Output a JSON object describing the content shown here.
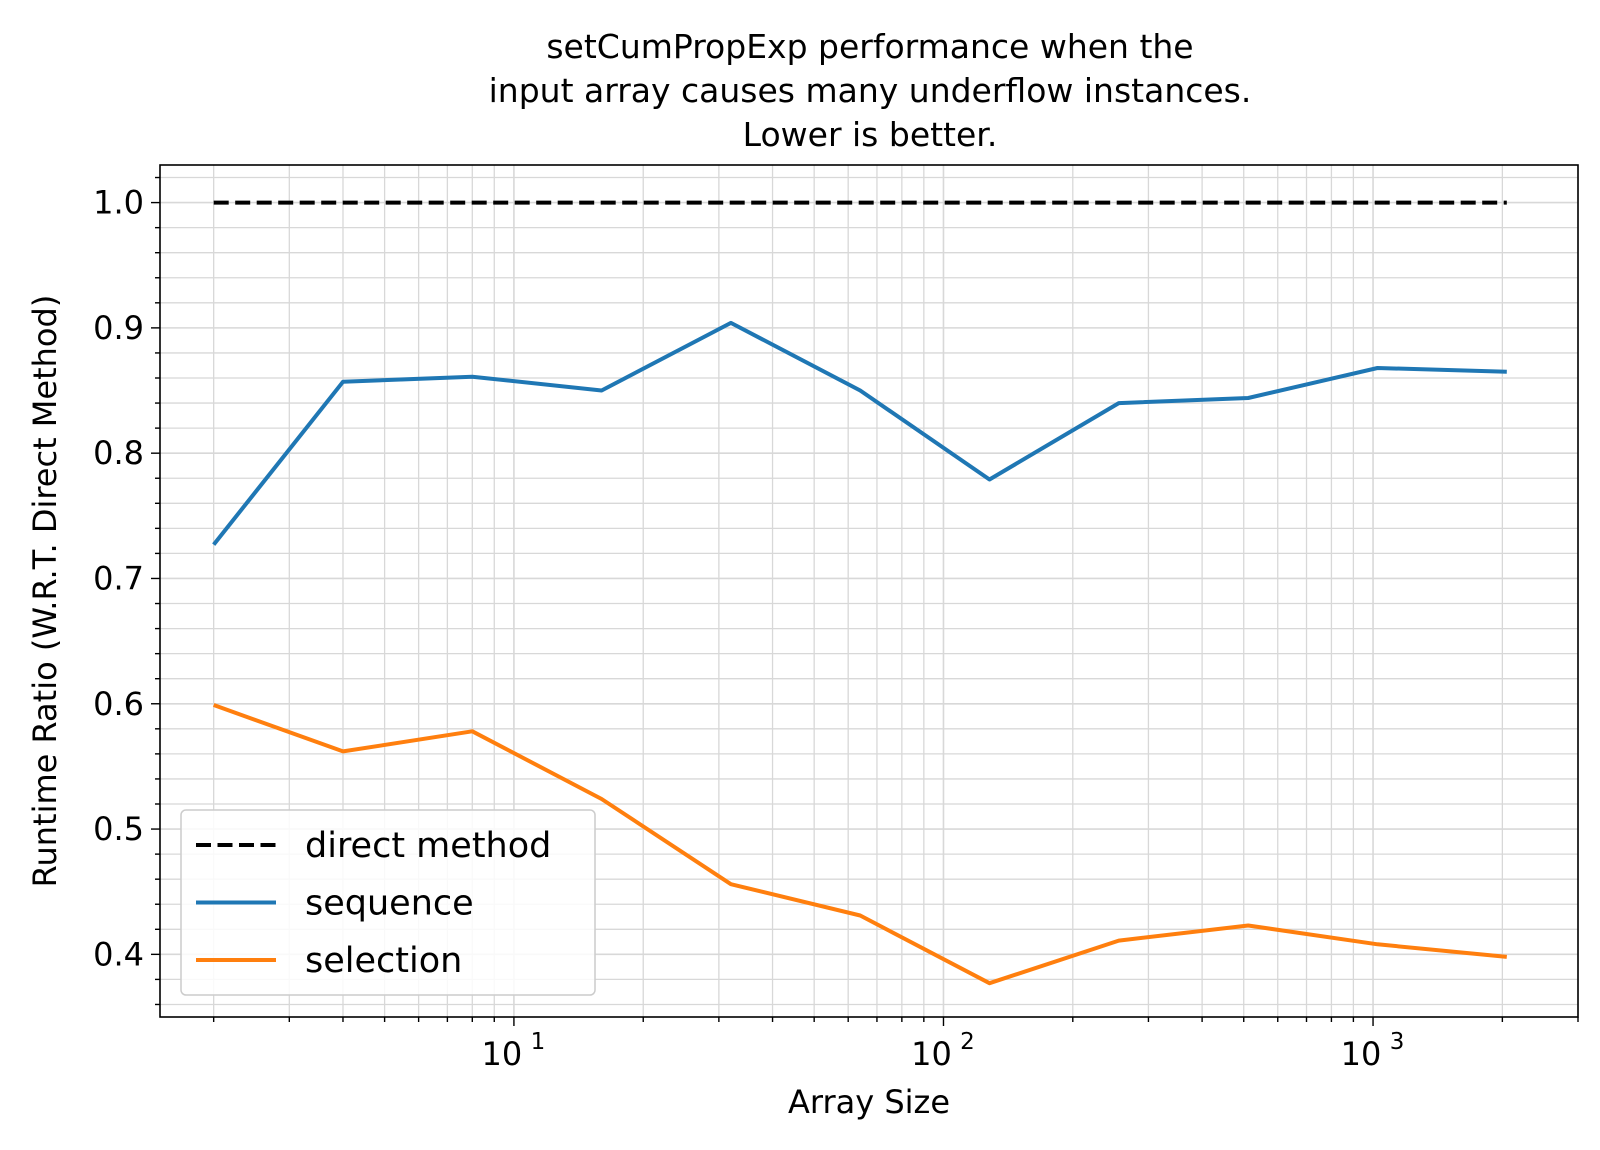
{
  "chart_data": {
    "type": "line",
    "title_lines": [
      "setCumPropExp performance when the",
      "input array causes many underflow instances.",
      "Lower is better."
    ],
    "xlabel": "Array Size",
    "ylabel": "Runtime Ratio (W.R.T. Direct Method)",
    "x_scale": "log",
    "xlim": [
      1.5,
      3000
    ],
    "ylim": [
      0.35,
      1.03
    ],
    "grid": true,
    "grid_minor": true,
    "legend_position": "lower-left",
    "x_ticks": [
      {
        "value": 10,
        "base": "10",
        "exp": "1"
      },
      {
        "value": 100,
        "base": "10",
        "exp": "2"
      },
      {
        "value": 1000,
        "base": "10",
        "exp": "3"
      }
    ],
    "y_ticks": [
      {
        "value": 0.4,
        "label": "0.4"
      },
      {
        "value": 0.5,
        "label": "0.5"
      },
      {
        "value": 0.6,
        "label": "0.6"
      },
      {
        "value": 0.7,
        "label": "0.7"
      },
      {
        "value": 0.8,
        "label": "0.8"
      },
      {
        "value": 0.9,
        "label": "0.9"
      },
      {
        "value": 1.0,
        "label": "1.0"
      }
    ],
    "x": [
      2,
      4,
      8,
      16,
      32,
      64,
      128,
      256,
      512,
      1024,
      2048
    ],
    "series": [
      {
        "name": "direct method",
        "color": "#000000",
        "dashed": true,
        "values": [
          1.0,
          1.0,
          1.0,
          1.0,
          1.0,
          1.0,
          1.0,
          1.0,
          1.0,
          1.0,
          1.0
        ]
      },
      {
        "name": "sequence",
        "color": "#1f77b4",
        "dashed": false,
        "values": [
          0.727,
          0.857,
          0.861,
          0.85,
          0.904,
          0.85,
          0.779,
          0.84,
          0.844,
          0.868,
          0.865
        ]
      },
      {
        "name": "selection",
        "color": "#ff7f0e",
        "dashed": false,
        "values": [
          0.599,
          0.562,
          0.578,
          0.524,
          0.456,
          0.431,
          0.377,
          0.411,
          0.423,
          0.408,
          0.398
        ]
      }
    ]
  }
}
